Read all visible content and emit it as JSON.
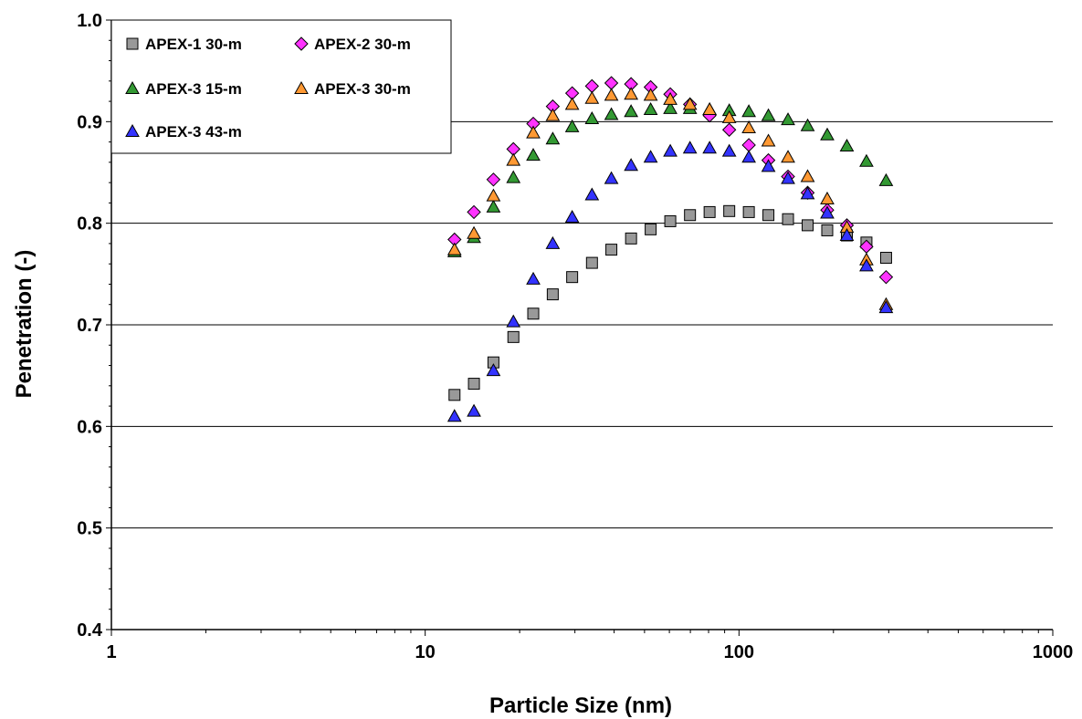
{
  "chart_data": {
    "type": "scatter",
    "title": "",
    "xlabel": "Particle Size (nm)",
    "ylabel": "Penetration (-)",
    "xscale": "log",
    "xlim": [
      1,
      1000
    ],
    "ylim": [
      0.4,
      1.0
    ],
    "x_ticks": [
      "1",
      "10",
      "100",
      "1000"
    ],
    "y_ticks": [
      "0.4",
      "0.5",
      "0.6",
      "0.7",
      "0.8",
      "0.9",
      "1.0"
    ],
    "grid": "horizontal major",
    "legend_position": "top-left",
    "series": [
      {
        "name": "APEX-1 30-m",
        "marker": "square",
        "color": "#999999",
        "points": [
          [
            12.4,
            0.631
          ],
          [
            14.3,
            0.642
          ],
          [
            16.5,
            0.663
          ],
          [
            19.1,
            0.688
          ],
          [
            22.1,
            0.711
          ],
          [
            25.5,
            0.73
          ],
          [
            29.4,
            0.747
          ],
          [
            34,
            0.761
          ],
          [
            39.2,
            0.774
          ],
          [
            45.3,
            0.785
          ],
          [
            52.3,
            0.794
          ],
          [
            60.4,
            0.802
          ],
          [
            69.8,
            0.808
          ],
          [
            80.6,
            0.811
          ],
          [
            93.1,
            0.812
          ],
          [
            107.5,
            0.811
          ],
          [
            124.1,
            0.808
          ],
          [
            143.3,
            0.804
          ],
          [
            165.5,
            0.798
          ],
          [
            191.1,
            0.793
          ],
          [
            220.7,
            0.788
          ],
          [
            254.8,
            0.781
          ],
          [
            294.3,
            0.766
          ]
        ]
      },
      {
        "name": "APEX-2 30-m",
        "marker": "diamond",
        "color": "#ff33ff",
        "points": [
          [
            12.4,
            0.784
          ],
          [
            14.3,
            0.811
          ],
          [
            16.5,
            0.843
          ],
          [
            19.1,
            0.873
          ],
          [
            22.1,
            0.898
          ],
          [
            25.5,
            0.915
          ],
          [
            29.4,
            0.928
          ],
          [
            34,
            0.935
          ],
          [
            39.2,
            0.938
          ],
          [
            45.3,
            0.937
          ],
          [
            52.3,
            0.934
          ],
          [
            60.4,
            0.927
          ],
          [
            69.8,
            0.917
          ],
          [
            80.6,
            0.906
          ],
          [
            93.1,
            0.892
          ],
          [
            107.5,
            0.877
          ],
          [
            124.1,
            0.862
          ],
          [
            143.3,
            0.846
          ],
          [
            165.5,
            0.83
          ],
          [
            191.1,
            0.813
          ],
          [
            220.7,
            0.798
          ],
          [
            254.8,
            0.777
          ],
          [
            294.3,
            0.747
          ]
        ]
      },
      {
        "name": "APEX-3 15-m",
        "marker": "triangle",
        "color": "#339933",
        "points": [
          [
            12.4,
            0.772
          ],
          [
            14.3,
            0.786
          ],
          [
            16.5,
            0.816
          ],
          [
            19.1,
            0.845
          ],
          [
            22.1,
            0.867
          ],
          [
            25.5,
            0.883
          ],
          [
            29.4,
            0.895
          ],
          [
            34,
            0.903
          ],
          [
            39.2,
            0.907
          ],
          [
            45.3,
            0.91
          ],
          [
            52.3,
            0.912
          ],
          [
            60.4,
            0.913
          ],
          [
            69.8,
            0.913
          ],
          [
            80.6,
            0.912
          ],
          [
            93.1,
            0.911
          ],
          [
            107.5,
            0.91
          ],
          [
            124.1,
            0.906
          ],
          [
            143.3,
            0.902
          ],
          [
            165.5,
            0.896
          ],
          [
            191.1,
            0.887
          ],
          [
            220.7,
            0.876
          ],
          [
            254.8,
            0.861
          ],
          [
            294.3,
            0.842
          ]
        ]
      },
      {
        "name": "APEX-3 30-m",
        "marker": "triangle",
        "color": "#ff9933",
        "points": [
          [
            12.4,
            0.774
          ],
          [
            14.3,
            0.79
          ],
          [
            16.5,
            0.827
          ],
          [
            19.1,
            0.862
          ],
          [
            22.1,
            0.889
          ],
          [
            25.5,
            0.906
          ],
          [
            29.4,
            0.917
          ],
          [
            34,
            0.923
          ],
          [
            39.2,
            0.926
          ],
          [
            45.3,
            0.927
          ],
          [
            52.3,
            0.926
          ],
          [
            60.4,
            0.922
          ],
          [
            69.8,
            0.917
          ],
          [
            80.6,
            0.912
          ],
          [
            93.1,
            0.904
          ],
          [
            107.5,
            0.894
          ],
          [
            124.1,
            0.881
          ],
          [
            143.3,
            0.865
          ],
          [
            165.5,
            0.846
          ],
          [
            191.1,
            0.824
          ],
          [
            220.7,
            0.796
          ],
          [
            254.8,
            0.764
          ],
          [
            294.3,
            0.72
          ]
        ]
      },
      {
        "name": "APEX-3 43-m",
        "marker": "triangle",
        "color": "#3333ff",
        "points": [
          [
            12.4,
            0.61
          ],
          [
            14.3,
            0.615
          ],
          [
            16.5,
            0.655
          ],
          [
            19.1,
            0.703
          ],
          [
            22.1,
            0.745
          ],
          [
            25.5,
            0.78
          ],
          [
            29.4,
            0.806
          ],
          [
            34,
            0.828
          ],
          [
            39.2,
            0.844
          ],
          [
            45.3,
            0.857
          ],
          [
            52.3,
            0.865
          ],
          [
            60.4,
            0.871
          ],
          [
            69.8,
            0.874
          ],
          [
            80.6,
            0.874
          ],
          [
            93.1,
            0.871
          ],
          [
            107.5,
            0.865
          ],
          [
            124.1,
            0.856
          ],
          [
            143.3,
            0.844
          ],
          [
            165.5,
            0.829
          ],
          [
            191.1,
            0.81
          ],
          [
            220.7,
            0.788
          ],
          [
            254.8,
            0.758
          ],
          [
            294.3,
            0.717
          ]
        ]
      }
    ]
  }
}
